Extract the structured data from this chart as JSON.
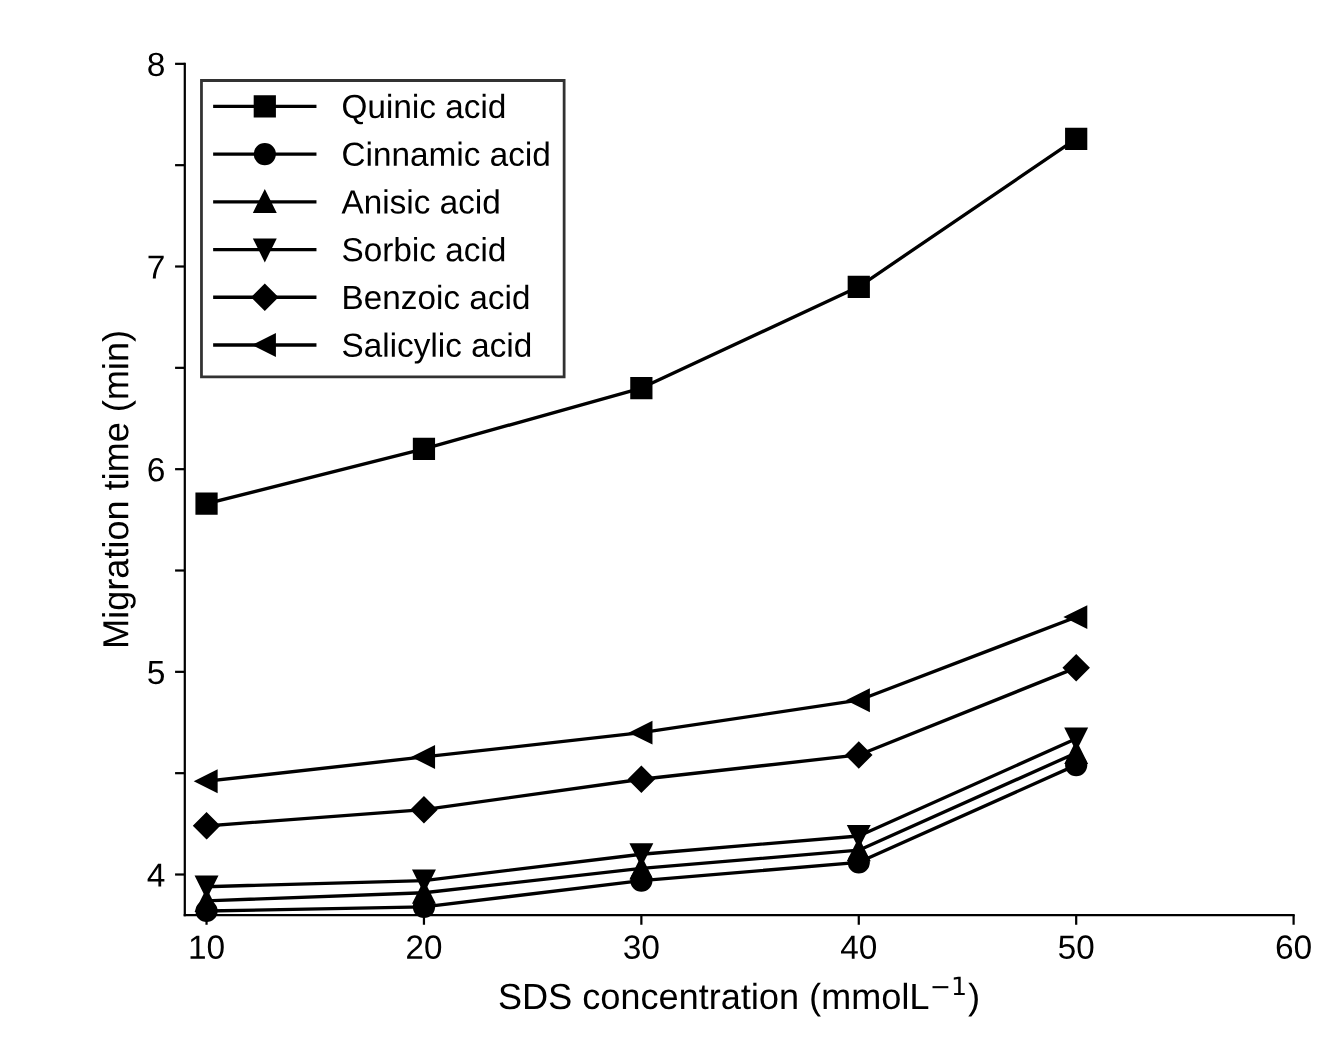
{
  "chart_data": {
    "type": "line",
    "xlabel": "SDS concentration (mmolL$^{−1}$)",
    "ylabel": "Migration time (min)",
    "x": [
      10,
      20,
      30,
      40,
      50
    ],
    "series": [
      {
        "name": "Quinic acid",
        "color": "#000000",
        "marker": "square",
        "values": [
          5.83,
          6.1,
          6.4,
          6.9,
          7.63
        ]
      },
      {
        "name": "Cinnamic acid",
        "color": "#000000",
        "marker": "circle",
        "values": [
          3.82,
          3.84,
          3.97,
          4.06,
          4.54
        ]
      },
      {
        "name": "Anisic acid",
        "color": "#000000",
        "marker": "triangle",
        "values": [
          3.87,
          3.91,
          4.03,
          4.12,
          4.6
        ]
      },
      {
        "name": "Sorbic acid",
        "color": "#000000",
        "marker": "triangle_down",
        "values": [
          3.94,
          3.97,
          4.1,
          4.19,
          4.67
        ]
      },
      {
        "name": "Benzoic acid",
        "color": "#000000",
        "marker": "diamond",
        "values": [
          4.24,
          4.32,
          4.47,
          4.59,
          5.02
        ]
      },
      {
        "name": "Salicylic acid",
        "color": "#000000",
        "marker": "triangle_left",
        "values": [
          4.46,
          4.58,
          4.7,
          4.86,
          5.27
        ]
      }
    ],
    "xlim": [
      9,
      60
    ],
    "xticks": [
      10,
      20,
      30,
      40,
      50,
      60
    ],
    "ylim": [
      3.8,
      8
    ],
    "yticks": [
      4,
      {
        "value": 4.5,
        "label": null
      },
      5,
      {
        "value": 5.5,
        "label": null
      },
      6,
      {
        "value": 6.5,
        "label": null
      },
      7,
      {
        "value": 7.5,
        "label": null
      },
      8
    ],
    "grid": false,
    "legend": "top left",
    "line_style": "solid"
  }
}
